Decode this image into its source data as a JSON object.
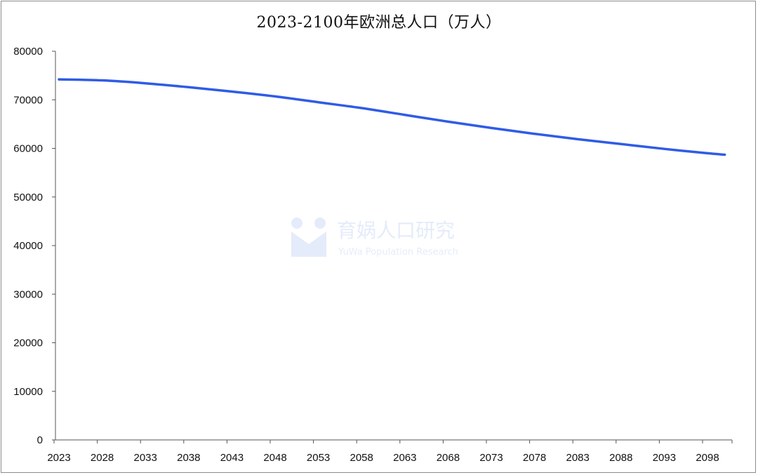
{
  "chart_data": {
    "type": "line",
    "title": "2023-2100年欧洲总人口（万人）",
    "xlabel": "",
    "ylabel": "",
    "ylim": [
      0,
      80000
    ],
    "yticks": [
      0,
      10000,
      20000,
      30000,
      40000,
      50000,
      60000,
      70000,
      80000
    ],
    "xticks": [
      2023,
      2028,
      2033,
      2038,
      2043,
      2048,
      2053,
      2058,
      2063,
      2068,
      2073,
      2078,
      2083,
      2088,
      2093,
      2098
    ],
    "xlim": [
      2023,
      2100
    ],
    "grid": false,
    "legend": "none",
    "series": [
      {
        "color": "#2f5ce6",
        "x": [
          2023,
          2028,
          2033,
          2038,
          2043,
          2048,
          2053,
          2058,
          2063,
          2068,
          2073,
          2078,
          2083,
          2088,
          2093,
          2098,
          2100
        ],
        "y": [
          74200,
          74000,
          73400,
          72600,
          71700,
          70700,
          69500,
          68300,
          66900,
          65500,
          64200,
          63000,
          61900,
          60900,
          59900,
          59000,
          58700
        ]
      }
    ]
  },
  "watermark": {
    "name": "育娲人口研究",
    "subtitle": "YuWa Population Research"
  }
}
